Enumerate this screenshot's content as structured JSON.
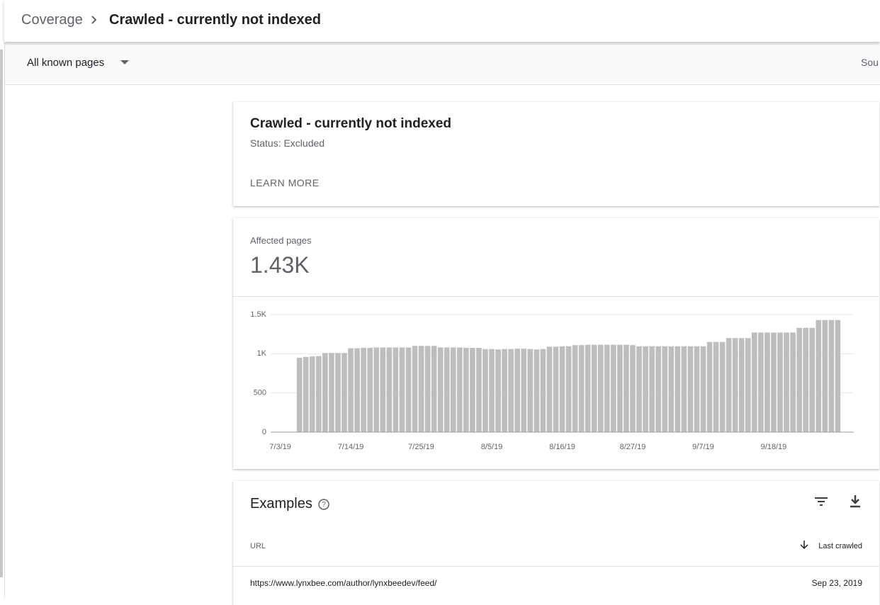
{
  "header": {
    "breadcrumb": [
      "Coverage",
      "Crawled - currently not indexed"
    ]
  },
  "filter": {
    "label": "All known pages",
    "source": "Sou"
  },
  "status_card": {
    "title": "Crawled - currently not indexed",
    "status": "Status: Excluded",
    "link": "LEARN MORE"
  },
  "summary": {
    "label": "Affected pages",
    "value": "1.43K"
  },
  "chart_data": {
    "type": "bar",
    "color": "#bdbdbd",
    "grid": true,
    "categories": [
      null,
      "7/3/19",
      null,
      null,
      null,
      null,
      null,
      null,
      null,
      null,
      null,
      null,
      "7/14/19",
      null,
      null,
      null,
      null,
      null,
      null,
      null,
      null,
      null,
      null,
      "7/25/19",
      null,
      null,
      null,
      null,
      null,
      null,
      null,
      null,
      null,
      null,
      "8/5/19",
      null,
      null,
      null,
      null,
      null,
      null,
      null,
      null,
      null,
      null,
      "8/16/19",
      null,
      null,
      null,
      null,
      null,
      null,
      null,
      null,
      null,
      null,
      "8/27/19",
      null,
      null,
      null,
      null,
      null,
      null,
      null,
      null,
      null,
      null,
      "9/7/19",
      null,
      null,
      null,
      null,
      null,
      null,
      null,
      null,
      null,
      null,
      "9/18/19",
      null,
      null,
      null,
      null,
      null,
      null,
      null,
      null,
      null,
      null,
      null,
      null
    ],
    "values": [
      null,
      null,
      null,
      null,
      950,
      960,
      965,
      970,
      1010,
      1010,
      1010,
      1010,
      1070,
      1070,
      1075,
      1075,
      1080,
      1080,
      1080,
      1080,
      1080,
      1080,
      1100,
      1100,
      1100,
      1100,
      1080,
      1080,
      1080,
      1080,
      1075,
      1075,
      1075,
      1060,
      1060,
      1055,
      1060,
      1060,
      1065,
      1065,
      1060,
      1055,
      1060,
      1090,
      1090,
      1095,
      1095,
      1110,
      1110,
      1115,
      1115,
      1115,
      1115,
      1115,
      1115,
      1115,
      1110,
      1095,
      1095,
      1095,
      1095,
      1095,
      1095,
      1095,
      1095,
      1095,
      1095,
      1095,
      1150,
      1150,
      1150,
      1200,
      1200,
      1200,
      1200,
      1270,
      1270,
      1270,
      1270,
      1270,
      1270,
      1270,
      1330,
      1330,
      1330,
      1430,
      1430,
      1430,
      1430,
      null,
      null
    ],
    "ylim": [
      0,
      1500
    ],
    "yticks": [
      0,
      500,
      {
        "value": 1000,
        "label": "1K"
      },
      {
        "value": 1500,
        "label": "1.5K"
      }
    ]
  },
  "examples": {
    "title": "Examples",
    "columns": [
      "URL",
      "Last crawled"
    ],
    "rows": [
      [
        "https://www.lynxbee.com/author/lynxbeedev/feed/",
        "Sep 23, 2019"
      ]
    ]
  }
}
